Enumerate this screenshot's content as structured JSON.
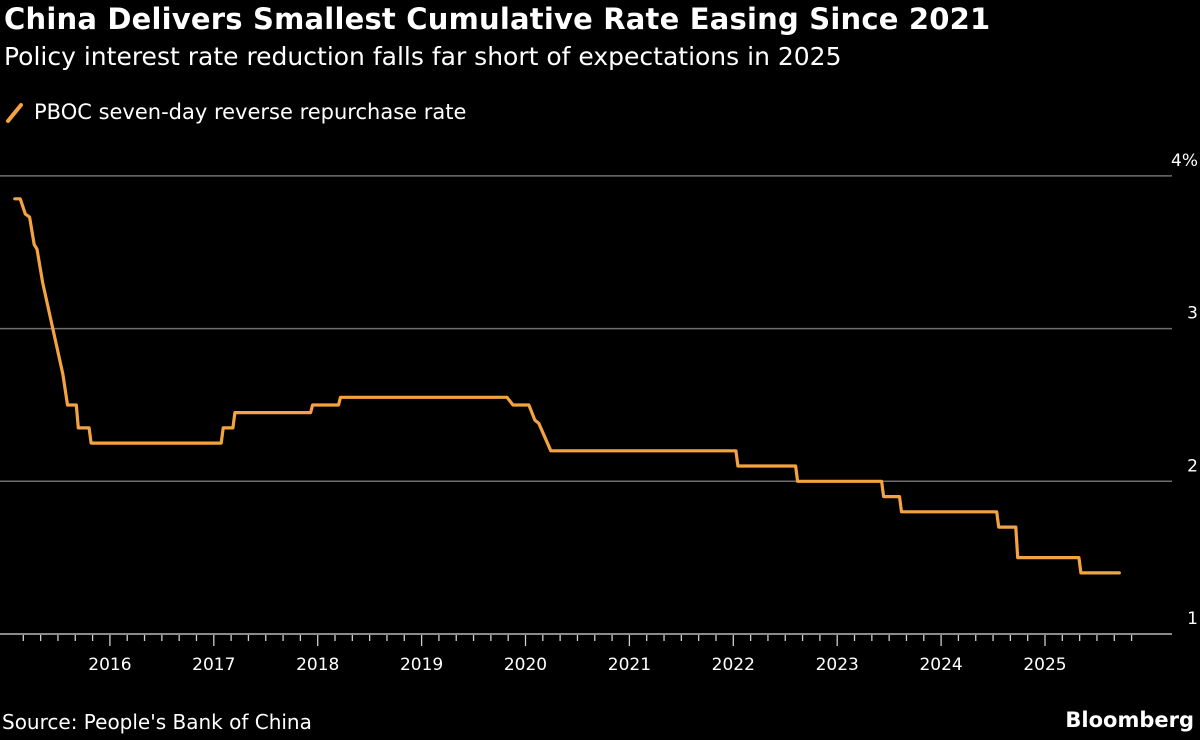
{
  "header": {
    "title": "China Delivers Smallest Cumulative Rate Easing Since 2021",
    "subtitle": "Policy interest rate reduction falls far short of expectations in 2025"
  },
  "footer": {
    "source": "Source: People's Bank of China",
    "brand": "Bloomberg"
  },
  "chart_data": {
    "type": "line",
    "title": "China Delivers Smallest Cumulative Rate Easing Since 2021",
    "subtitle": "Policy interest rate reduction falls far short of expectations in 2025",
    "legend_position": "top-left",
    "grid": true,
    "line_color": "#f4a340",
    "background": "#000000",
    "ylim": [
      1,
      4
    ],
    "y_ticks": [
      {
        "value": 4,
        "label": "4%"
      },
      {
        "value": 3,
        "label": "3"
      },
      {
        "value": 2,
        "label": "2"
      },
      {
        "value": 1,
        "label": "1"
      }
    ],
    "y_axis_side": "right",
    "xlim": [
      "2015-01-01",
      "2026-01-01"
    ],
    "x_ticks": [
      "2016",
      "2017",
      "2018",
      "2019",
      "2020",
      "2021",
      "2022",
      "2023",
      "2024",
      "2025"
    ],
    "series": [
      {
        "name": "PBOC seven-day reverse repurchase rate",
        "points": [
          [
            "2015-02-01",
            3.85
          ],
          [
            "2015-02-20",
            3.85
          ],
          [
            "2015-03-10",
            3.75
          ],
          [
            "2015-03-25",
            3.73
          ],
          [
            "2015-04-10",
            3.55
          ],
          [
            "2015-04-20",
            3.52
          ],
          [
            "2015-05-10",
            3.3
          ],
          [
            "2015-07-20",
            2.7
          ],
          [
            "2015-08-05",
            2.5
          ],
          [
            "2015-09-05",
            2.5
          ],
          [
            "2015-09-12",
            2.35
          ],
          [
            "2015-10-20",
            2.35
          ],
          [
            "2015-10-27",
            2.25
          ],
          [
            "2017-01-27",
            2.25
          ],
          [
            "2017-02-03",
            2.35
          ],
          [
            "2017-03-09",
            2.35
          ],
          [
            "2017-03-16",
            2.45
          ],
          [
            "2017-12-07",
            2.45
          ],
          [
            "2017-12-14",
            2.5
          ],
          [
            "2018-03-15",
            2.5
          ],
          [
            "2018-03-22",
            2.55
          ],
          [
            "2019-10-28",
            2.55
          ],
          [
            "2019-11-18",
            2.5
          ],
          [
            "2020-01-13",
            2.5
          ],
          [
            "2020-02-03",
            2.4
          ],
          [
            "2020-02-17",
            2.38
          ],
          [
            "2020-03-30",
            2.2
          ],
          [
            "2022-01-10",
            2.2
          ],
          [
            "2022-01-17",
            2.1
          ],
          [
            "2022-08-08",
            2.1
          ],
          [
            "2022-08-15",
            2.0
          ],
          [
            "2023-06-06",
            2.0
          ],
          [
            "2023-06-13",
            1.9
          ],
          [
            "2023-08-08",
            1.9
          ],
          [
            "2023-08-15",
            1.8
          ],
          [
            "2024-07-15",
            1.8
          ],
          [
            "2024-07-22",
            1.7
          ],
          [
            "2024-09-20",
            1.7
          ],
          [
            "2024-09-27",
            1.5
          ],
          [
            "2025-04-30",
            1.5
          ],
          [
            "2025-05-07",
            1.4
          ],
          [
            "2025-09-19",
            1.4
          ]
        ]
      }
    ]
  }
}
